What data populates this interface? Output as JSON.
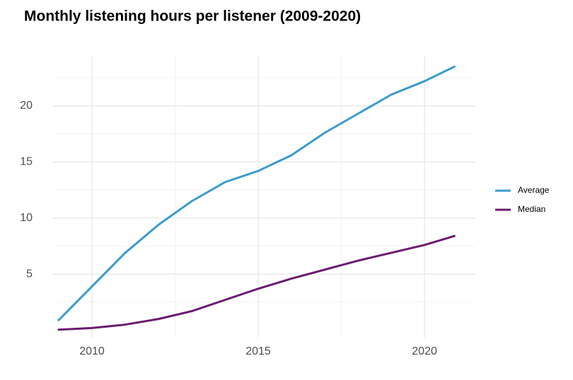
{
  "chart_data": {
    "type": "line",
    "title": "Monthly listening hours per listener (2009-2020)",
    "x": [
      2009,
      2010,
      2011,
      2012,
      2013,
      2014,
      2015,
      2016,
      2017,
      2018,
      2019,
      2020,
      2020.9
    ],
    "series": [
      {
        "name": "Average",
        "color": "#3a9bcd",
        "values": [
          0.9,
          3.9,
          6.9,
          9.4,
          11.5,
          13.2,
          14.2,
          15.6,
          17.6,
          19.3,
          21.0,
          22.2,
          23.5
        ]
      },
      {
        "name": "Median",
        "color": "#6a1b6e",
        "values": [
          0.05,
          0.2,
          0.5,
          1.0,
          1.7,
          2.7,
          3.7,
          4.6,
          5.4,
          6.2,
          6.9,
          7.6,
          8.4
        ]
      }
    ],
    "xlim": [
      2008.83,
      2021.53
    ],
    "xticks": [
      2010,
      2015,
      2020
    ],
    "ylim": [
      -0.66,
      24.4
    ],
    "yticks": [
      5,
      10,
      15,
      20
    ],
    "grid": true,
    "legend": "right"
  }
}
